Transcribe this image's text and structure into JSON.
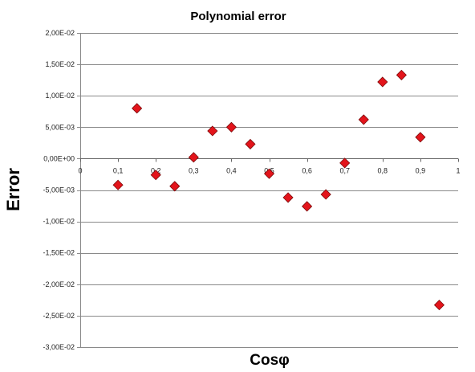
{
  "chart_data": {
    "type": "scatter",
    "title": "Polynomial error",
    "xlabel": "Cosφ",
    "ylabel": "Error",
    "xlim": [
      0,
      1
    ],
    "ylim": [
      -0.03,
      0.02
    ],
    "x_ticks": [
      0,
      0.1,
      0.2,
      0.3,
      0.4,
      0.5,
      0.6,
      0.7,
      0.8,
      0.9,
      1
    ],
    "x_tick_labels": [
      "0",
      "0,1",
      "0,2",
      "0,3",
      "0,4",
      "0,5",
      "0,6",
      "0,7",
      "0,8",
      "0,9",
      "1"
    ],
    "y_ticks": [
      0.02,
      0.015,
      0.01,
      0.005,
      0,
      -0.005,
      -0.01,
      -0.015,
      -0.02,
      -0.025,
      -0.03
    ],
    "y_tick_labels": [
      "2,00E-02",
      "1,50E-02",
      "1,00E-02",
      "5,00E-03",
      "0,00E+00",
      "-5,00E-03",
      "-1,00E-02",
      "-1,50E-02",
      "-2,00E-02",
      "-2,50E-02",
      "-3,00E-02"
    ],
    "grid": "horizontal",
    "marker_color": "#e3141b",
    "points": [
      {
        "x": 0.1,
        "y": -0.0042
      },
      {
        "x": 0.15,
        "y": 0.008
      },
      {
        "x": 0.2,
        "y": -0.0026
      },
      {
        "x": 0.25,
        "y": -0.0044
      },
      {
        "x": 0.3,
        "y": 0.0002
      },
      {
        "x": 0.35,
        "y": 0.0044
      },
      {
        "x": 0.4,
        "y": 0.005
      },
      {
        "x": 0.45,
        "y": 0.0023
      },
      {
        "x": 0.5,
        "y": -0.0024
      },
      {
        "x": 0.55,
        "y": -0.0062
      },
      {
        "x": 0.6,
        "y": -0.0076
      },
      {
        "x": 0.65,
        "y": -0.0057
      },
      {
        "x": 0.7,
        "y": -0.0007
      },
      {
        "x": 0.75,
        "y": 0.0062
      },
      {
        "x": 0.8,
        "y": 0.0122
      },
      {
        "x": 0.85,
        "y": 0.0133
      },
      {
        "x": 0.9,
        "y": 0.0034
      },
      {
        "x": 0.95,
        "y": -0.0233
      }
    ]
  }
}
